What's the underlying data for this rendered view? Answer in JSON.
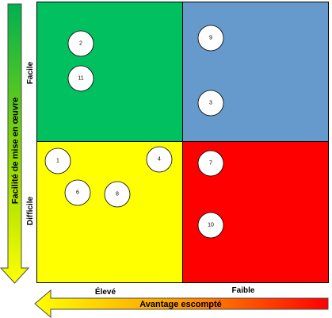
{
  "colors": {
    "top_left": "#00c060",
    "top_right": "#6699cc",
    "bottom_left": "#ffff00",
    "bottom_right": "#ff0000"
  },
  "vertical_axis": {
    "title": "Facilité de mise en œuvre",
    "top_label": "Facile",
    "bottom_label": "Difficile"
  },
  "horizontal_axis": {
    "title": "Avantage escompté",
    "left_label": "Élevé",
    "right_label": "Faible"
  },
  "items": [
    {
      "id": "2",
      "quadrant": "top-left"
    },
    {
      "id": "11",
      "quadrant": "top-left"
    },
    {
      "id": "9",
      "quadrant": "top-right"
    },
    {
      "id": "3",
      "quadrant": "top-right"
    },
    {
      "id": "1",
      "quadrant": "bottom-left"
    },
    {
      "id": "4",
      "quadrant": "bottom-left"
    },
    {
      "id": "6",
      "quadrant": "bottom-left"
    },
    {
      "id": "8",
      "quadrant": "bottom-left"
    },
    {
      "id": "7",
      "quadrant": "bottom-right"
    },
    {
      "id": "10",
      "quadrant": "bottom-right"
    }
  ]
}
